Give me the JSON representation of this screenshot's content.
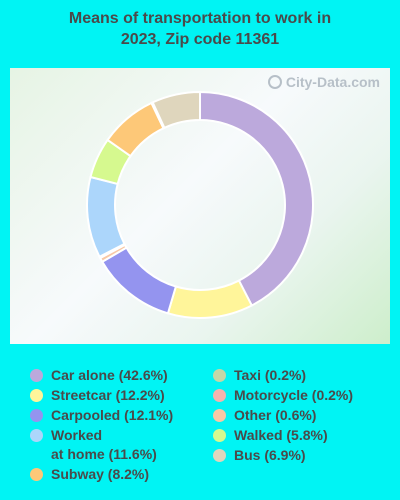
{
  "chart_data": {
    "type": "pie",
    "title": "Means of transportation to work in\n2023, Zip code 11361",
    "slices": [
      {
        "label": "Car alone",
        "value": 42.6,
        "legend": "Car alone (42.6%)",
        "color": "#bca9dc"
      },
      {
        "label": "Streetcar",
        "value": 12.2,
        "legend": "Streetcar (12.2%)",
        "color": "#fff59a"
      },
      {
        "label": "Carpooled",
        "value": 12.1,
        "legend": "Carpooled (12.1%)",
        "color": "#9494ef"
      },
      {
        "label": "Other",
        "value": 0.6,
        "legend": "Other (0.6%)",
        "color": "#f8c8a6"
      },
      {
        "label": "Motorcycle",
        "value": 0.2,
        "legend": "Motorcycle (0.2%)",
        "color": "#f4b4ae"
      },
      {
        "label": "Worked at home",
        "value": 11.6,
        "legend": "Worked\nat home (11.6%)",
        "color": "#acd6fb"
      },
      {
        "label": "Walked",
        "value": 5.8,
        "legend": "Walked (5.8%)",
        "color": "#d6f98f"
      },
      {
        "label": "Subway",
        "value": 8.2,
        "legend": "Subway (8.2%)",
        "color": "#fdc878"
      },
      {
        "label": "Taxi",
        "value": 0.2,
        "legend": "Taxi (0.2%)",
        "color": "#c4d7a7"
      },
      {
        "label": "Bus",
        "value": 6.9,
        "legend": "Bus (6.9%)",
        "color": "#dfd6bd"
      }
    ],
    "legend_columns": [
      [
        "Car alone",
        "Streetcar",
        "Carpooled",
        "Worked at home",
        "Subway"
      ],
      [
        "Taxi",
        "Motorcycle",
        "Other",
        "Walked",
        "Bus"
      ]
    ]
  },
  "watermark": "City-Data.com"
}
